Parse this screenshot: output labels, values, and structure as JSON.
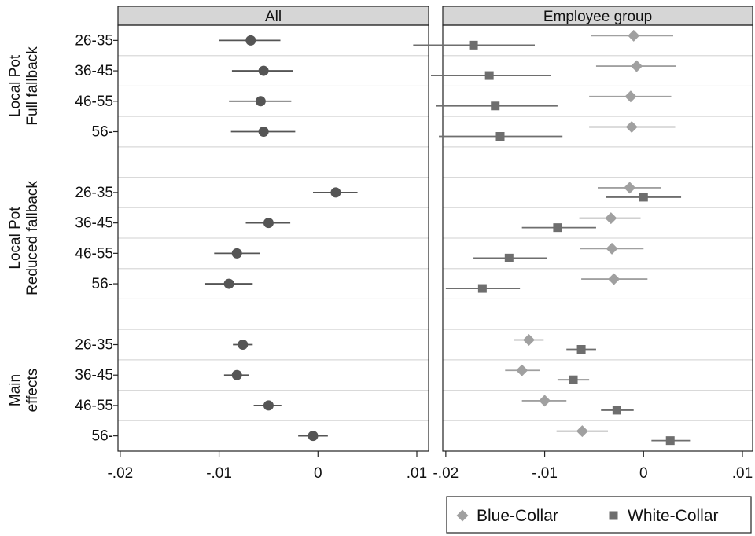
{
  "chart_data": {
    "type": "scatter",
    "subtype": "coefficient-plot",
    "panels": [
      {
        "key": "all",
        "title": "All"
      },
      {
        "key": "group",
        "title": "Employee group"
      }
    ],
    "groups": [
      {
        "label_lines": [
          "Local Pot",
          "Full fallback"
        ],
        "ages": [
          "26-35",
          "36-45",
          "46-55",
          "56-"
        ]
      },
      {
        "label_lines": [
          "Local Pot",
          "Reduced fallback"
        ],
        "ages": [
          "26-35",
          "36-45",
          "46-55",
          "56-"
        ]
      },
      {
        "label_lines": [
          "Main",
          "effects"
        ],
        "ages": [
          "26-35",
          "36-45",
          "46-55",
          "56-"
        ]
      }
    ],
    "xlim": [
      -0.025,
      0.01
    ],
    "xticks": [
      -0.02,
      -0.01,
      0,
      0.01
    ],
    "xtick_labels": [
      "-.02",
      "-.01",
      "0",
      ".01"
    ],
    "all": [
      [
        {
          "est": -0.0068,
          "lo": -0.01,
          "hi": -0.0038
        },
        {
          "est": -0.0055,
          "lo": -0.0087,
          "hi": -0.0025
        },
        {
          "est": -0.0058,
          "lo": -0.009,
          "hi": -0.0027
        },
        {
          "est": -0.0055,
          "lo": -0.0088,
          "hi": -0.0023
        }
      ],
      [
        {
          "est": 0.0018,
          "lo": -0.0005,
          "hi": 0.004
        },
        {
          "est": -0.005,
          "lo": -0.0073,
          "hi": -0.0028
        },
        {
          "est": -0.0082,
          "lo": -0.0105,
          "hi": -0.0059
        },
        {
          "est": -0.009,
          "lo": -0.0114,
          "hi": -0.0066
        }
      ],
      [
        {
          "est": -0.0076,
          "lo": -0.0086,
          "hi": -0.0066
        },
        {
          "est": -0.0082,
          "lo": -0.0095,
          "hi": -0.007
        },
        {
          "est": -0.005,
          "lo": -0.0065,
          "hi": -0.0037
        },
        {
          "est": -0.0005,
          "lo": -0.002,
          "hi": 0.001
        }
      ]
    ],
    "series": [
      {
        "name": "Blue-Collar",
        "marker": "diamond",
        "color": "#a0a0a0",
        "groups": [
          [
            {
              "est": -0.001,
              "lo": -0.0053,
              "hi": 0.003
            },
            {
              "est": -0.0007,
              "lo": -0.0048,
              "hi": 0.0033
            },
            {
              "est": -0.0013,
              "lo": -0.0055,
              "hi": 0.0028
            },
            {
              "est": -0.0012,
              "lo": -0.0055,
              "hi": 0.0032
            }
          ],
          [
            {
              "est": -0.0014,
              "lo": -0.0046,
              "hi": 0.0018
            },
            {
              "est": -0.0033,
              "lo": -0.0065,
              "hi": -0.0003
            },
            {
              "est": -0.0032,
              "lo": -0.0064,
              "hi": 0.0
            },
            {
              "est": -0.003,
              "lo": -0.0063,
              "hi": 0.0004
            }
          ],
          [
            {
              "est": -0.0116,
              "lo": -0.0131,
              "hi": -0.0101
            },
            {
              "est": -0.0123,
              "lo": -0.014,
              "hi": -0.0105
            },
            {
              "est": -0.01,
              "lo": -0.0123,
              "hi": -0.0078
            },
            {
              "est": -0.0062,
              "lo": -0.0088,
              "hi": -0.0036
            }
          ]
        ]
      },
      {
        "name": "White-Collar",
        "marker": "square",
        "color": "#6e6e6e",
        "groups": [
          [
            {
              "est": -0.0172,
              "lo": -0.0233,
              "hi": -0.011
            },
            {
              "est": -0.0156,
              "lo": -0.0215,
              "hi": -0.0094
            },
            {
              "est": -0.015,
              "lo": -0.021,
              "hi": -0.0087
            },
            {
              "est": -0.0145,
              "lo": -0.0207,
              "hi": -0.0082
            }
          ],
          [
            {
              "est": 0.0,
              "lo": -0.0038,
              "hi": 0.0038
            },
            {
              "est": -0.0087,
              "lo": -0.0123,
              "hi": -0.0048
            },
            {
              "est": -0.0136,
              "lo": -0.0172,
              "hi": -0.0098
            },
            {
              "est": -0.0163,
              "lo": -0.02,
              "hi": -0.0125
            }
          ],
          [
            {
              "est": -0.0063,
              "lo": -0.0078,
              "hi": -0.0048
            },
            {
              "est": -0.0071,
              "lo": -0.0087,
              "hi": -0.0055
            },
            {
              "est": -0.0027,
              "lo": -0.0043,
              "hi": -0.001
            },
            {
              "est": 0.0027,
              "lo": 0.0008,
              "hi": 0.0047
            }
          ]
        ]
      }
    ],
    "grid": true,
    "legend_position": "bottom-right"
  }
}
